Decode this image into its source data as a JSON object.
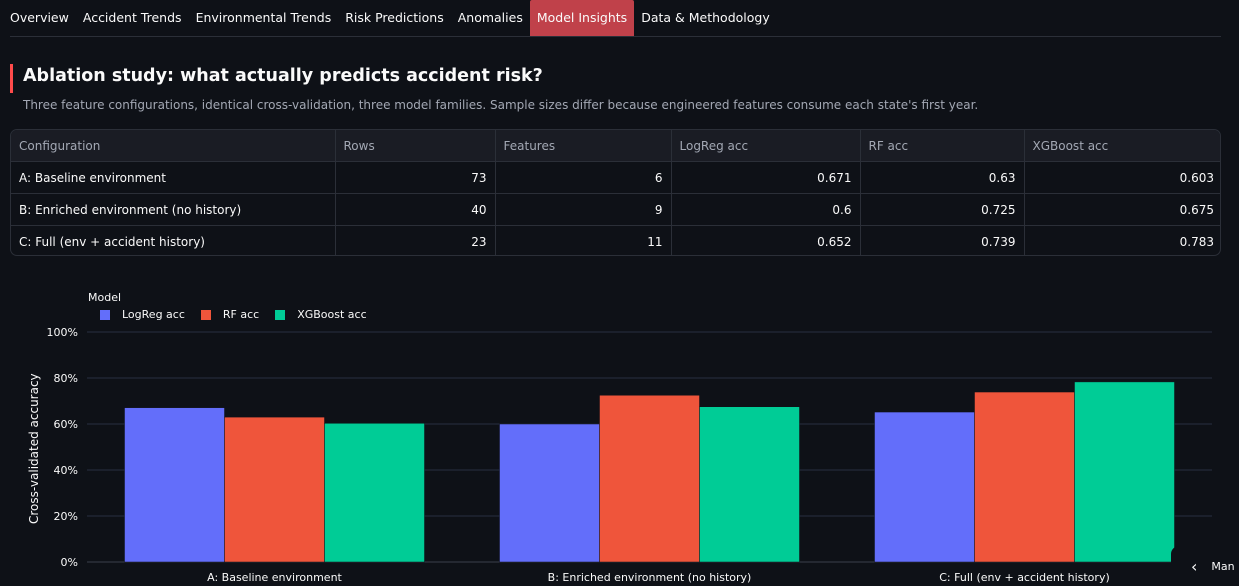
{
  "tabs": [
    {
      "label": "Overview",
      "active": false
    },
    {
      "label": "Accident Trends",
      "active": false
    },
    {
      "label": "Environmental Trends",
      "active": false
    },
    {
      "label": "Risk Predictions",
      "active": false
    },
    {
      "label": "Anomalies",
      "active": false
    },
    {
      "label": "Model Insights",
      "active": true
    },
    {
      "label": "Data & Methodology",
      "active": false
    }
  ],
  "section": {
    "title": "Ablation study: what actually predicts accident risk?",
    "subtitle": "Three feature configurations, identical cross-validation, three model families. Sample sizes differ because engineered features consume each state's first year."
  },
  "table": {
    "columns": [
      "Configuration",
      "Rows",
      "Features",
      "LogReg acc",
      "RF acc",
      "XGBoost acc"
    ],
    "rows": [
      [
        "A: Baseline environment",
        "73",
        "6",
        "0.671",
        "0.63",
        "0.603"
      ],
      [
        "B: Enriched environment (no history)",
        "40",
        "9",
        "0.6",
        "0.725",
        "0.675"
      ],
      [
        "C: Full (env + accident history)",
        "23",
        "11",
        "0.652",
        "0.739",
        "0.783"
      ]
    ]
  },
  "chart_data": {
    "type": "bar",
    "legend_title": "Model",
    "ylabel": "Cross-validated accuracy",
    "xlabel": "",
    "ylim": [
      0,
      1
    ],
    "yticks": [
      "0%",
      "20%",
      "40%",
      "60%",
      "80%",
      "100%"
    ],
    "categories": [
      "A: Baseline environment",
      "B: Enriched environment (no history)",
      "C: Full (env + accident history)"
    ],
    "series": [
      {
        "name": "LogReg acc",
        "color": "#636efa",
        "values": [
          0.671,
          0.6,
          0.652
        ]
      },
      {
        "name": "RF acc",
        "color": "#ef553b",
        "values": [
          0.63,
          0.725,
          0.739
        ]
      },
      {
        "name": "XGBoost acc",
        "color": "#00cc96",
        "values": [
          0.603,
          0.675,
          0.783
        ]
      }
    ],
    "grid": true,
    "legend_position": "top-left"
  },
  "nav": {
    "chevron": "chevron-left-icon",
    "label": "Man"
  }
}
